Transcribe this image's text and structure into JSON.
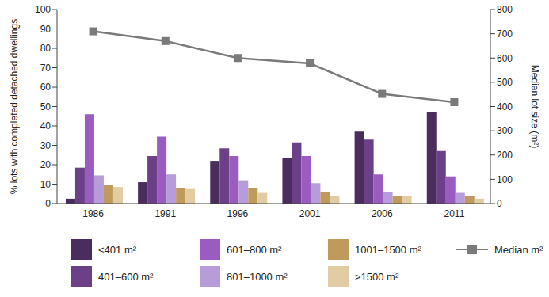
{
  "chart_data": {
    "type": "bar",
    "categories": [
      "1986",
      "1991",
      "1996",
      "2001",
      "2006",
      "2011"
    ],
    "series": [
      {
        "name": "<401 m²",
        "color": "#4b2c5e",
        "values": [
          2.5,
          11,
          22,
          23.5,
          37,
          47
        ]
      },
      {
        "name": "401–600 m²",
        "color": "#6c4088",
        "values": [
          18.5,
          24.5,
          28.5,
          31.5,
          33,
          27
        ]
      },
      {
        "name": "601–800 m²",
        "color": "#9b5cc0",
        "values": [
          46,
          34.5,
          24.5,
          24.5,
          15,
          14
        ]
      },
      {
        "name": "801–1000 m²",
        "color": "#b69cd8",
        "values": [
          14.5,
          15,
          12,
          10.5,
          6,
          5.5
        ]
      },
      {
        "name": "1001–1500 m²",
        "color": "#c09a5c",
        "values": [
          9.5,
          8,
          8,
          6,
          4,
          4
        ]
      },
      {
        "name": ">1500 m²",
        "color": "#e1cca4",
        "values": [
          8.5,
          7.5,
          5.5,
          4,
          4,
          2.5
        ]
      },
      {
        "name": "Median m²",
        "type": "line",
        "axis": "y2",
        "color": "#7a7a7a",
        "marker": "square",
        "values": [
          710,
          670,
          600,
          578,
          452,
          418
        ]
      }
    ],
    "y_label": "% lots with completed detached dwellings",
    "y2_label": "Median lot size (m²)",
    "ylim": [
      0,
      100
    ],
    "yticks": [
      0,
      10,
      20,
      30,
      40,
      50,
      60,
      70,
      80,
      90,
      100
    ],
    "y2lim": [
      0,
      800
    ],
    "y2ticks": [
      0,
      100,
      200,
      300,
      400,
      500,
      600,
      700,
      800
    ],
    "legend": "bottom",
    "grid": false
  }
}
